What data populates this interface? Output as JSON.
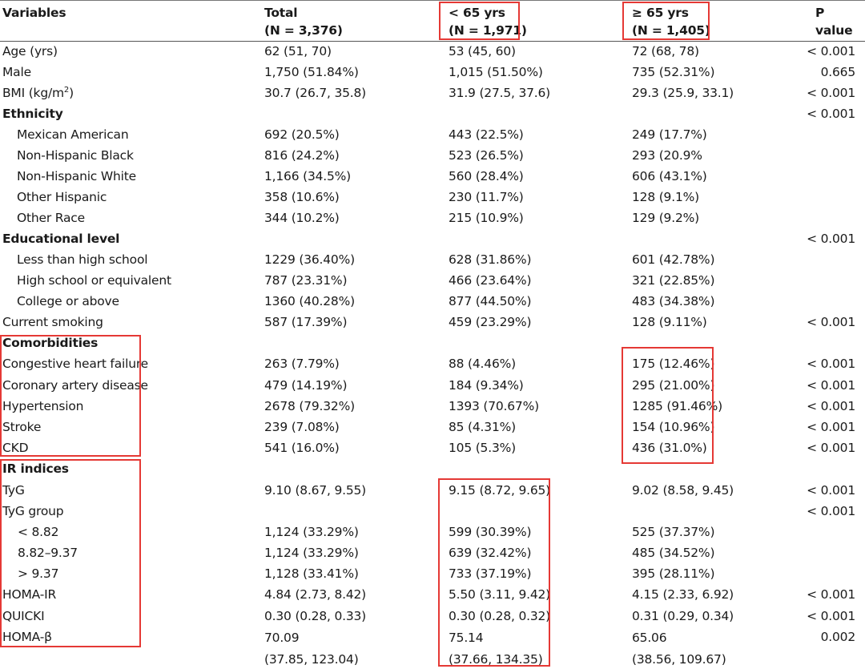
{
  "header": {
    "variables": "Variables",
    "total": [
      "Total",
      "(N = 3,376)"
    ],
    "lt65": [
      "< 65 yrs",
      "(N = 1,971)"
    ],
    "ge65": [
      "≥ 65 yrs",
      "(N = 1,405)"
    ],
    "p": [
      "P",
      "value"
    ]
  },
  "rows": [
    {
      "label": "Age (yrs)",
      "total": "62 (51, 70)",
      "lt65": "53 (45, 60)",
      "ge65": "72 (68, 78)",
      "p": "< 0.001"
    },
    {
      "label": "Male",
      "total": "1,750 (51.84%)",
      "lt65": "1,015 (51.50%)",
      "ge65": "735 (52.31%)",
      "p": "0.665"
    },
    {
      "label": "BMI (kg/m",
      "label_sup": "2",
      "label_end": ")",
      "total": "30.7 (26.7, 35.8)",
      "lt65": "31.9 (27.5, 37.6)",
      "ge65": "29.3 (25.9, 33.1)",
      "p": "< 0.001"
    },
    {
      "label": "Ethnicity",
      "bold": true,
      "total": "",
      "lt65": "",
      "ge65": "",
      "p": "< 0.001"
    },
    {
      "label": "Mexican American",
      "indent": true,
      "total": "692 (20.5%)",
      "lt65": "443 (22.5%)",
      "ge65": "249 (17.7%)",
      "p": ""
    },
    {
      "label": "Non-Hispanic Black",
      "indent": true,
      "total": "816 (24.2%)",
      "lt65": "523 (26.5%)",
      "ge65": "293 (20.9%",
      "p": ""
    },
    {
      "label": "Non-Hispanic White",
      "indent": true,
      "total": "1,166 (34.5%)",
      "lt65": "560 (28.4%)",
      "ge65": "606 (43.1%)",
      "p": ""
    },
    {
      "label": "Other Hispanic",
      "indent": true,
      "total": "358 (10.6%)",
      "lt65": "230 (11.7%)",
      "ge65": "128 (9.1%)",
      "p": ""
    },
    {
      "label": "Other Race",
      "indent": true,
      "total": "344 (10.2%)",
      "lt65": "215 (10.9%)",
      "ge65": "129 (9.2%)",
      "p": ""
    },
    {
      "label": "Educational level",
      "bold": true,
      "total": "",
      "lt65": "",
      "ge65": "",
      "p": "< 0.001"
    },
    {
      "label": "Less than high school",
      "indent": true,
      "total": "1229 (36.40%)",
      "lt65": "628 (31.86%)",
      "ge65": "601 (42.78%)",
      "p": ""
    },
    {
      "label": "High school or equivalent",
      "indent": true,
      "total": "787 (23.31%)",
      "lt65": "466 (23.64%)",
      "ge65": "321 (22.85%)",
      "p": ""
    },
    {
      "label": "College or above",
      "indent": true,
      "total": "1360 (40.28%)",
      "lt65": "877 (44.50%)",
      "ge65": "483 (34.38%)",
      "p": ""
    },
    {
      "label": "Current smoking",
      "total": "587 (17.39%)",
      "lt65": "459 (23.29%)",
      "ge65": "128 (9.11%)",
      "p": "< 0.001"
    },
    {
      "label": "Comorbidities",
      "bold": true,
      "total": "",
      "lt65": "",
      "ge65": "",
      "p": ""
    },
    {
      "label": "Congestive heart failure",
      "total": "263 (7.79%)",
      "lt65": "88 (4.46%)",
      "ge65": "175 (12.46%)",
      "p": "< 0.001"
    },
    {
      "label": "Coronary artery disease",
      "total": "479 (14.19%)",
      "lt65": "184 (9.34%)",
      "ge65": "295 (21.00%)",
      "p": "< 0.001"
    },
    {
      "label": "Hypertension",
      "total": "2678 (79.32%)",
      "lt65": "1393 (70.67%)",
      "ge65": "1285 (91.46%)",
      "p": "< 0.001"
    },
    {
      "label": "Stroke",
      "total": "239 (7.08%)",
      "lt65": "85 (4.31%)",
      "ge65": "154 (10.96%)",
      "p": "< 0.001"
    },
    {
      "label": "CKD",
      "total": "541 (16.0%)",
      "lt65": "105 (5.3%)",
      "ge65": "436 (31.0%)",
      "p": "< 0.001"
    },
    {
      "label": "IR indices",
      "bold": true,
      "total": "",
      "lt65": "",
      "ge65": "",
      "p": ""
    },
    {
      "label": "TyG",
      "total": "9.10 (8.67, 9.55)",
      "lt65": "9.15 (8.72, 9.65)",
      "ge65": "9.02 (8.58, 9.45)",
      "p": "< 0.001"
    },
    {
      "label": "TyG group",
      "total": "",
      "lt65": "",
      "ge65": "",
      "p": "< 0.001"
    },
    {
      "label": "< 8.82",
      "indent2": true,
      "total": "1,124 (33.29%)",
      "lt65": "599 (30.39%)",
      "ge65": "525 (37.37%)",
      "p": ""
    },
    {
      "label": "8.82–9.37",
      "indent2": true,
      "total": "1,124 (33.29%)",
      "lt65": "639 (32.42%)",
      "ge65": "485 (34.52%)",
      "p": ""
    },
    {
      "label": "> 9.37",
      "indent2": true,
      "total": "1,128 (33.41%)",
      "lt65": "733 (37.19%)",
      "ge65": "395 (28.11%)",
      "p": ""
    },
    {
      "label": "HOMA-IR",
      "total": "4.84 (2.73, 8.42)",
      "lt65": "5.50 (3.11, 9.42)",
      "ge65": "4.15 (2.33, 6.92)",
      "p": "< 0.001"
    },
    {
      "label": "QUICKI",
      "total": "0.30 (0.28, 0.33)",
      "lt65": "0.30 (0.28, 0.32)",
      "ge65": "0.31 (0.29, 0.34)",
      "p": "< 0.001"
    },
    {
      "label": "HOMA-β",
      "total": "70.09",
      "lt65": "75.14",
      "ge65": "65.06",
      "p": "0.002",
      "total2": "(37.85, 123.04)",
      "lt652": "(37.66, 134.35)",
      "ge652": "(38.56, 109.67)"
    }
  ],
  "highlight_color": "#e53935"
}
